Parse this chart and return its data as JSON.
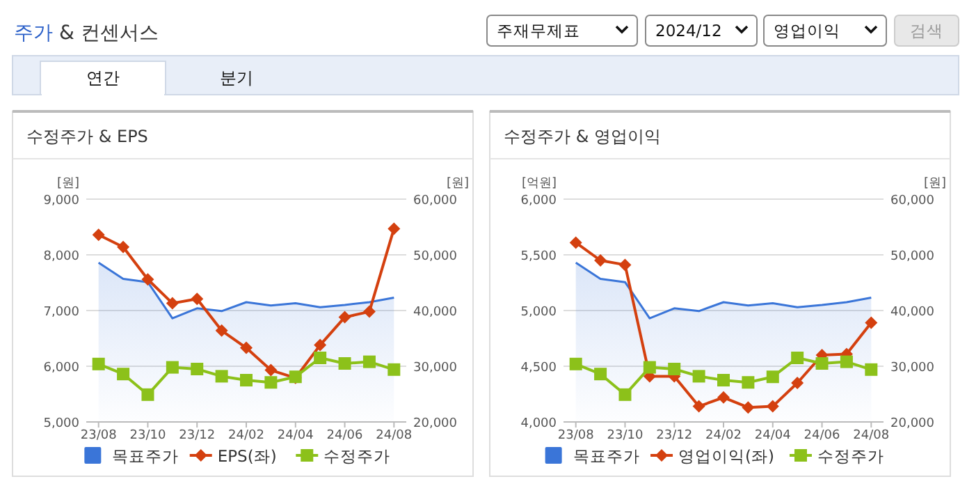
{
  "chart_data": [
    {
      "type": "other",
      "title": "주가 & 컨센서스",
      "annotations": [
        "주재무제표",
        "2024/12",
        "영업이익",
        "검색",
        "연간",
        "분기"
      ]
    },
    {
      "type": "line",
      "title": "수정주가 & EPS",
      "ylabel": "[원]",
      "y2label": "[원]",
      "categories": [
        "23/08",
        null,
        "23/10",
        null,
        "23/12",
        null,
        "24/02",
        null,
        "24/04",
        null,
        "24/06",
        null,
        "24/08"
      ],
      "ylim": [
        5000,
        9000
      ],
      "yticks": [
        {
          "value": 5000,
          "label": "5,000"
        },
        {
          "value": 6000,
          "label": "6,000"
        },
        {
          "value": 7000,
          "label": "7,000"
        },
        {
          "value": 8000,
          "label": "8,000"
        },
        {
          "value": 9000,
          "label": "9,000"
        }
      ],
      "y2lim": [
        20000,
        60000
      ],
      "y2ticks": [
        {
          "value": 20000,
          "label": "20,000"
        },
        {
          "value": 30000,
          "label": "30,000"
        },
        {
          "value": 40000,
          "label": "40,000"
        },
        {
          "value": 50000,
          "label": "50,000"
        },
        {
          "value": 60000,
          "label": "60,000"
        }
      ],
      "grid": "y",
      "legend": "bottom",
      "series": [
        {
          "name": "목표주가",
          "type": "area",
          "axis": "y2",
          "color": "#3a75d8",
          "marker": "none",
          "values": [
            48600,
            45700,
            45100,
            38600,
            40400,
            39900,
            41500,
            40900,
            41300,
            40600,
            41000,
            41500,
            42300
          ]
        },
        {
          "name": "EPS(좌)",
          "type": "line",
          "color": "#d4400f",
          "marker": "diamond",
          "values": [
            8360,
            8140,
            7560,
            7130,
            7210,
            6640,
            6330,
            5930,
            5790,
            6380,
            6880,
            6980,
            8470
          ]
        },
        {
          "name": "수정주가",
          "type": "line",
          "axis": "y2",
          "color": "#8cc11a",
          "marker": "square",
          "values": [
            30400,
            28600,
            24900,
            29800,
            29500,
            28200,
            27500,
            27100,
            28100,
            31500,
            30500,
            30800,
            29400
          ]
        }
      ]
    },
    {
      "type": "line",
      "title": "수정주가 & 영업이익",
      "ylabel": "[억원]",
      "y2label": "[원]",
      "categories": [
        "23/08",
        null,
        "23/10",
        null,
        "23/12",
        null,
        "24/02",
        null,
        "24/04",
        null,
        "24/06",
        null,
        "24/08"
      ],
      "ylim": [
        4000,
        6000
      ],
      "yticks": [
        {
          "value": 4000,
          "label": "4,000"
        },
        {
          "value": 4500,
          "label": "4,500"
        },
        {
          "value": 5000,
          "label": "5,000"
        },
        {
          "value": 5500,
          "label": "5,500"
        },
        {
          "value": 6000,
          "label": "6,000"
        }
      ],
      "y2lim": [
        20000,
        60000
      ],
      "y2ticks": [
        {
          "value": 20000,
          "label": "20,000"
        },
        {
          "value": 30000,
          "label": "30,000"
        },
        {
          "value": 40000,
          "label": "40,000"
        },
        {
          "value": 50000,
          "label": "50,000"
        },
        {
          "value": 60000,
          "label": "60,000"
        }
      ],
      "grid": "y",
      "legend": "bottom",
      "series": [
        {
          "name": "목표주가",
          "type": "area",
          "axis": "y2",
          "color": "#3a75d8",
          "marker": "none",
          "values": [
            48600,
            45700,
            45100,
            38600,
            40400,
            39900,
            41500,
            40900,
            41300,
            40600,
            41000,
            41500,
            42300
          ]
        },
        {
          "name": "영업이익(좌)",
          "type": "line",
          "color": "#d4400f",
          "marker": "diamond",
          "values": [
            5610,
            5450,
            5410,
            4410,
            4410,
            4140,
            4220,
            4130,
            4140,
            4350,
            4600,
            4610,
            4890
          ]
        },
        {
          "name": "수정주가",
          "type": "line",
          "axis": "y2",
          "color": "#8cc11a",
          "marker": "square",
          "values": [
            30400,
            28600,
            24900,
            29800,
            29500,
            28200,
            27500,
            27100,
            28100,
            31500,
            30500,
            30800,
            29400
          ]
        }
      ]
    }
  ]
}
